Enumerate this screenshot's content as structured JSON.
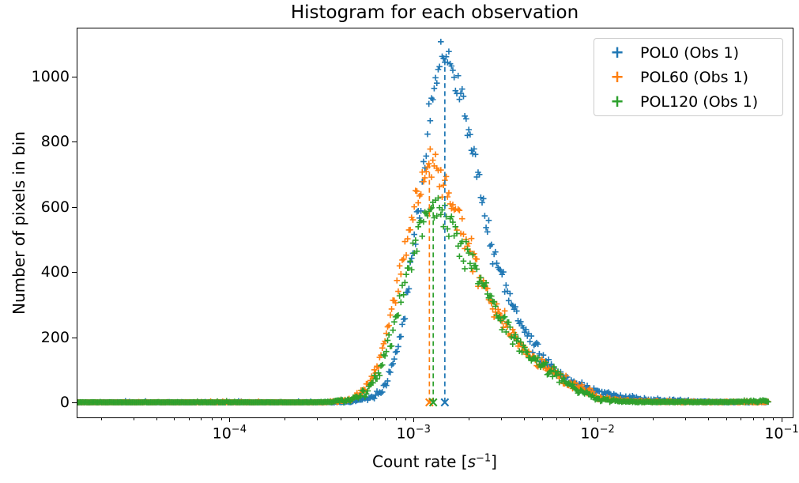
{
  "chart_data": {
    "type": "scatter",
    "title": "Histogram for each observation",
    "xlabel": {
      "prefix": "Count rate [",
      "unit_italic": "s",
      "exponent": "−1",
      "suffix": "]"
    },
    "ylabel": "Number of pixels in bin",
    "x_scale": "log",
    "xlim_log10": [
      -4.83,
      -0.94
    ],
    "ylim": [
      -46,
      1150
    ],
    "grid": false,
    "legend_position": "upper right",
    "x_ticks": [
      {
        "base": "10",
        "exp": "−4",
        "log10": -4
      },
      {
        "base": "10",
        "exp": "−3",
        "log10": -3
      },
      {
        "base": "10",
        "exp": "−2",
        "log10": -2
      },
      {
        "base": "10",
        "exp": "−1",
        "log10": -1
      }
    ],
    "y_ticks": [
      {
        "label": "0",
        "value": 0
      },
      {
        "label": "200",
        "value": 200
      },
      {
        "label": "400",
        "value": 400
      },
      {
        "label": "600",
        "value": 600
      },
      {
        "label": "800",
        "value": 800
      },
      {
        "label": "1000",
        "value": 1000
      }
    ],
    "bins_per_series": 520,
    "bin_log10_range": [
      -4.825,
      -1.073
    ],
    "noise_model": "poisson",
    "series": [
      {
        "name": "POL0 (Obs 1)",
        "color": "#1f77b4",
        "marker": "+",
        "peak": {
          "x": 0.00146,
          "y": 1065
        },
        "vline": {
          "x": 0.00148,
          "style": "dashed",
          "end_marker": "x",
          "y0": 0,
          "y1": 1065
        },
        "envelope_points": [
          [
            1.48e-05,
            0
          ],
          [
            0.0001,
            0
          ],
          [
            0.0003,
            0
          ],
          [
            0.00045,
            1
          ],
          [
            0.0006,
            15
          ],
          [
            0.0007,
            50
          ],
          [
            0.0008,
            140
          ],
          [
            0.0009,
            280
          ],
          [
            0.001,
            470
          ],
          [
            0.0011,
            660
          ],
          [
            0.0012,
            850
          ],
          [
            0.0013,
            960
          ],
          [
            0.00146,
            1065
          ],
          [
            0.0016,
            1030
          ],
          [
            0.0018,
            940
          ],
          [
            0.002,
            820
          ],
          [
            0.0022,
            710
          ],
          [
            0.0026,
            510
          ],
          [
            0.003,
            390
          ],
          [
            0.004,
            215
          ],
          [
            0.005,
            140
          ],
          [
            0.006,
            90
          ],
          [
            0.008,
            50
          ],
          [
            0.01,
            32
          ],
          [
            0.013,
            18
          ],
          [
            0.016,
            10
          ],
          [
            0.02,
            6
          ],
          [
            0.03,
            3
          ],
          [
            0.05,
            1
          ],
          [
            0.085,
            1
          ]
        ]
      },
      {
        "name": "POL60 (Obs 1)",
        "color": "#ff7f0e",
        "marker": "+",
        "peak": {
          "x": 0.00122,
          "y": 735
        },
        "vline": {
          "x": 0.00122,
          "style": "dashed",
          "end_marker": "x",
          "y0": 0,
          "y1": 735
        },
        "envelope_points": [
          [
            1.48e-05,
            0
          ],
          [
            0.0001,
            0
          ],
          [
            0.00025,
            0
          ],
          [
            0.00035,
            1
          ],
          [
            0.00045,
            8
          ],
          [
            0.00055,
            40
          ],
          [
            0.00065,
            120
          ],
          [
            0.00075,
            260
          ],
          [
            0.00085,
            400
          ],
          [
            0.00095,
            540
          ],
          [
            0.00105,
            640
          ],
          [
            0.00122,
            735
          ],
          [
            0.00135,
            700
          ],
          [
            0.0015,
            655
          ],
          [
            0.0017,
            575
          ],
          [
            0.002,
            470
          ],
          [
            0.0024,
            360
          ],
          [
            0.003,
            260
          ],
          [
            0.004,
            165
          ],
          [
            0.005,
            115
          ],
          [
            0.006,
            85
          ],
          [
            0.008,
            45
          ],
          [
            0.01,
            16
          ],
          [
            0.013,
            7
          ],
          [
            0.016,
            4
          ],
          [
            0.02,
            2
          ],
          [
            0.03,
            1
          ],
          [
            0.05,
            1
          ],
          [
            0.085,
            1
          ]
        ]
      },
      {
        "name": "POL120 (Obs 1)",
        "color": "#2ca02c",
        "marker": "+",
        "peak": {
          "x": 0.00128,
          "y": 618
        },
        "vline": {
          "x": 0.00128,
          "style": "dashed",
          "end_marker": "x",
          "y0": 0,
          "y1": 618
        },
        "envelope_points": [
          [
            1.48e-05,
            0
          ],
          [
            0.0001,
            0
          ],
          [
            0.00025,
            0
          ],
          [
            0.00035,
            1
          ],
          [
            0.00045,
            6
          ],
          [
            0.00055,
            30
          ],
          [
            0.00065,
            90
          ],
          [
            0.00075,
            195
          ],
          [
            0.00085,
            310
          ],
          [
            0.00095,
            420
          ],
          [
            0.00105,
            500
          ],
          [
            0.00128,
            618
          ],
          [
            0.0014,
            590
          ],
          [
            0.0016,
            540
          ],
          [
            0.0018,
            490
          ],
          [
            0.0021,
            420
          ],
          [
            0.0025,
            330
          ],
          [
            0.003,
            255
          ],
          [
            0.004,
            160
          ],
          [
            0.005,
            110
          ],
          [
            0.006,
            80
          ],
          [
            0.008,
            35
          ],
          [
            0.01,
            10
          ],
          [
            0.013,
            4
          ],
          [
            0.016,
            2
          ],
          [
            0.02,
            1
          ],
          [
            0.03,
            1
          ],
          [
            0.05,
            1
          ],
          [
            0.085,
            4
          ]
        ]
      }
    ]
  }
}
